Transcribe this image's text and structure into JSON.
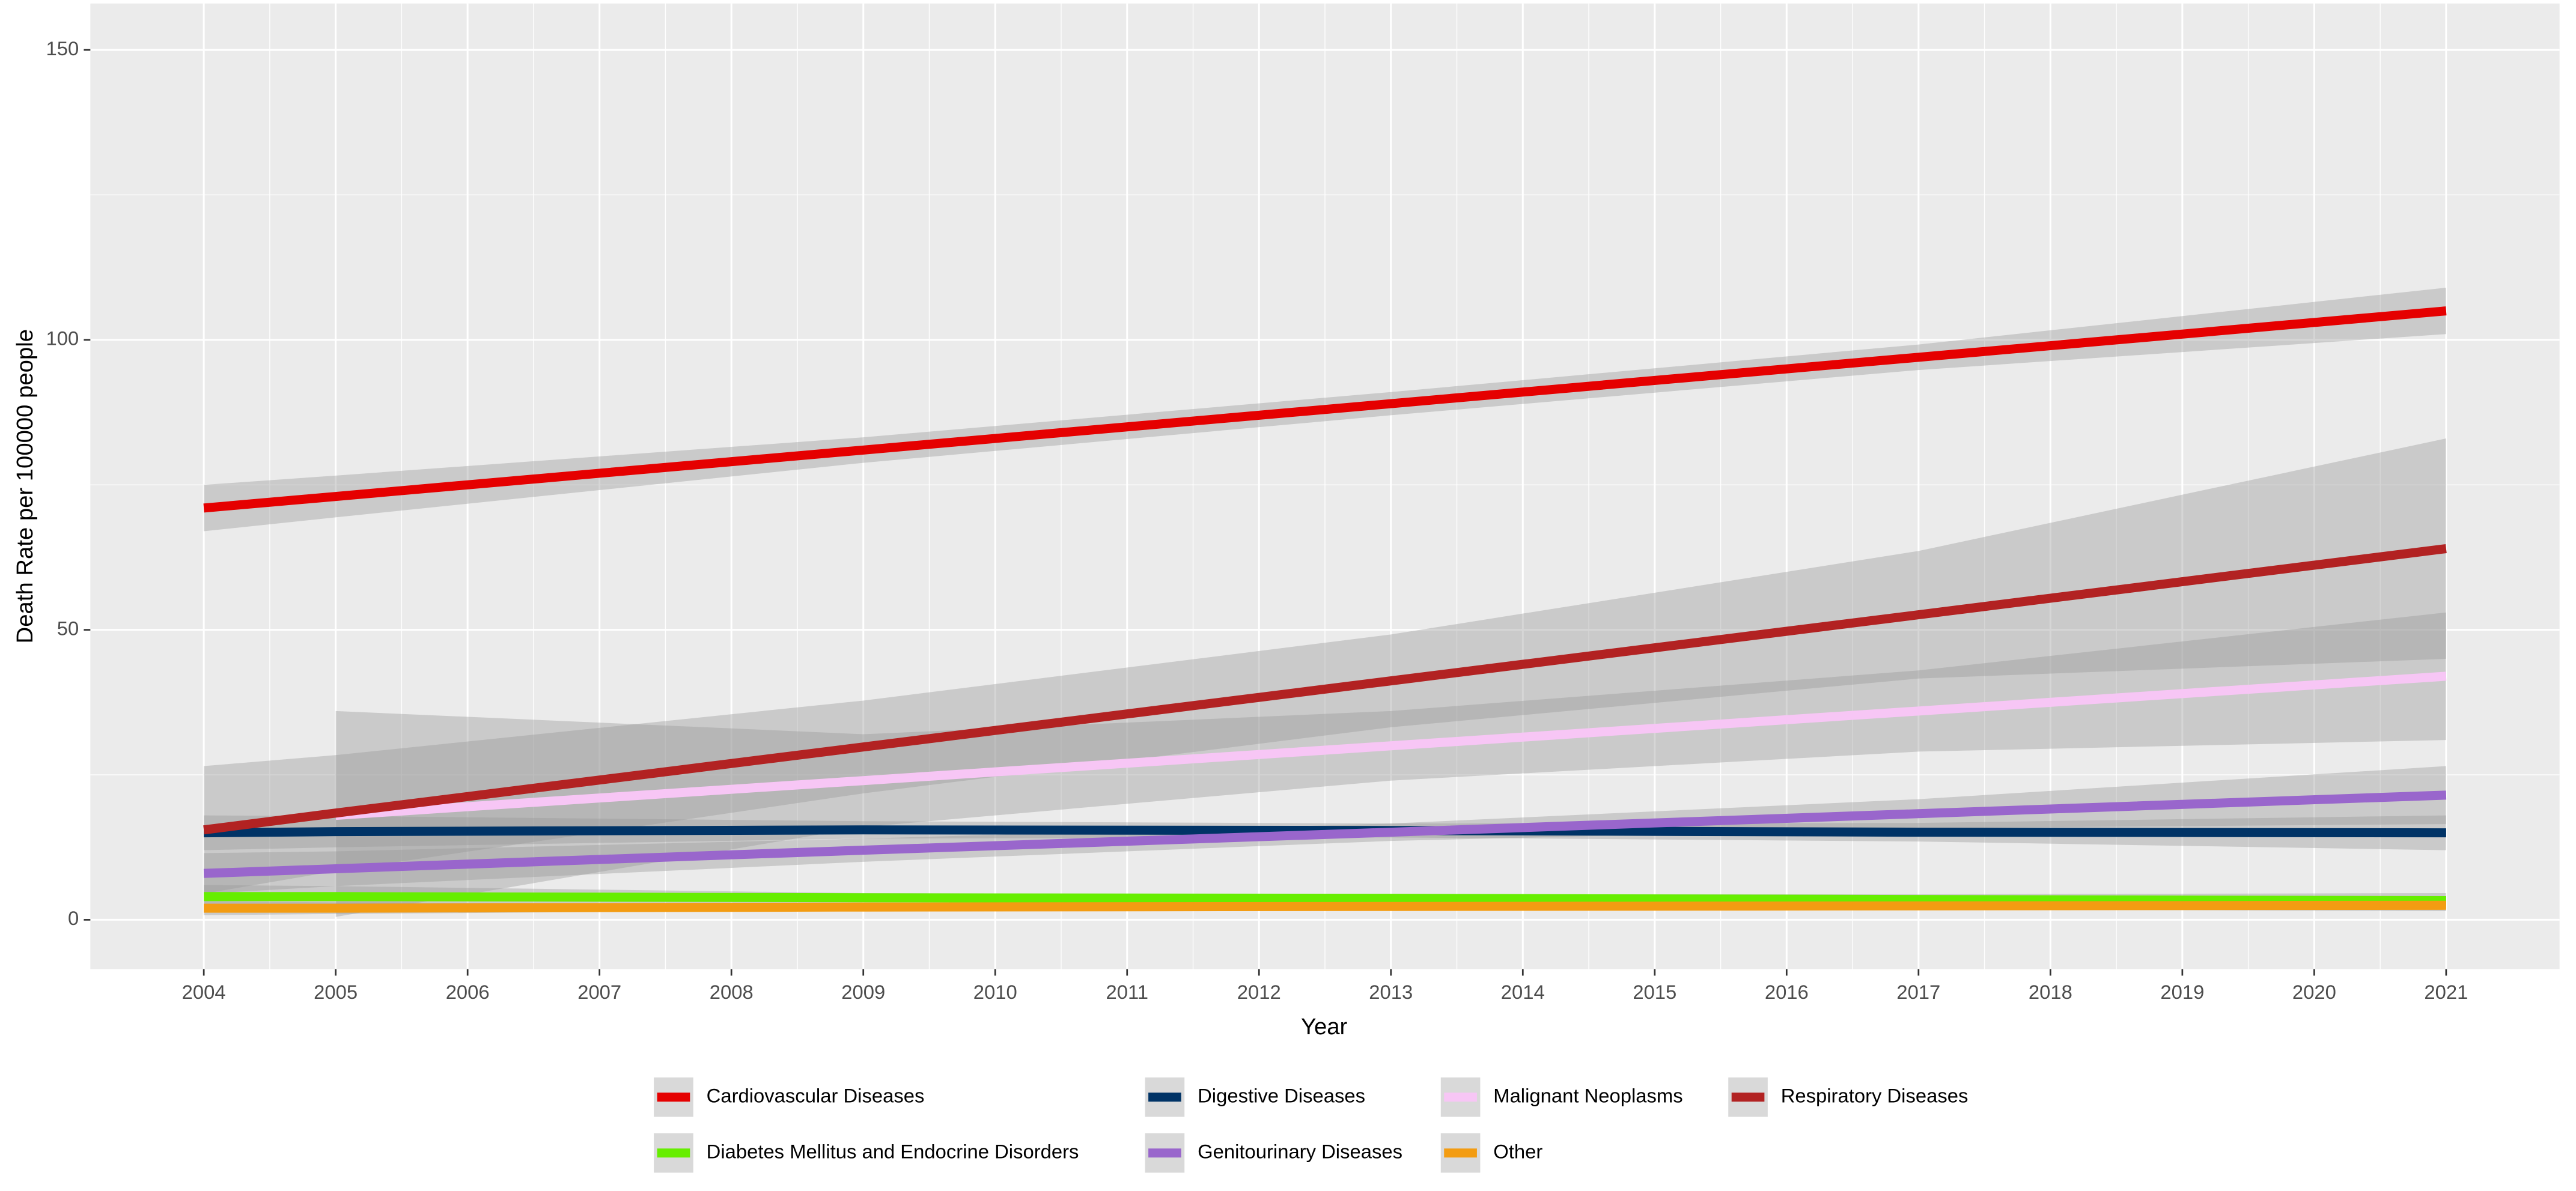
{
  "chart_data": {
    "type": "line",
    "xlabel": "Year",
    "ylabel": "Death Rate per 100000 people",
    "x": [
      2004,
      2005,
      2009,
      2013,
      2017,
      2021
    ],
    "xlim": [
      2003.14,
      2021.86
    ],
    "xticks": [
      2004,
      2005,
      2006,
      2007,
      2008,
      2009,
      2010,
      2011,
      2012,
      2013,
      2014,
      2015,
      2016,
      2017,
      2018,
      2019,
      2020,
      2021
    ],
    "ylim": [
      -8.5,
      158
    ],
    "yticks": [
      0,
      50,
      100,
      150
    ],
    "grid": true,
    "legend": "bottom",
    "band_color": "#999999",
    "series": [
      {
        "name": "Cardiovascular Diseases",
        "color": "#e50000",
        "values": [
          71,
          73,
          81,
          89,
          97,
          105
        ],
        "lower": [
          67,
          69.4,
          78.8,
          87,
          94.8,
          101
        ],
        "upper": [
          75,
          76.6,
          83.2,
          91,
          99.2,
          109
        ]
      },
      {
        "name": "Diabetes Mellitus and Endocrine Disorders",
        "color": "#66ee00",
        "values": [
          4,
          4,
          3.8,
          3.7,
          3.5,
          3.3
        ],
        "lower": [
          2,
          2.2,
          3,
          3,
          2.6,
          2
        ],
        "upper": [
          6,
          5.8,
          4.6,
          4.4,
          4.4,
          4.6
        ]
      },
      {
        "name": "Digestive Diseases",
        "color": "#003366",
        "values": [
          15,
          15.2,
          15.5,
          15.4,
          15.1,
          15
        ],
        "lower": [
          12,
          12.5,
          14,
          14.2,
          13.5,
          12
        ],
        "upper": [
          18,
          17.9,
          17,
          16.6,
          16.7,
          18
        ]
      },
      {
        "name": "Genitourinary Diseases",
        "color": "#9966cc",
        "values": [
          8,
          8.8,
          12,
          15.1,
          18.3,
          21.5
        ],
        "lower": [
          4.5,
          5.8,
          10,
          13.6,
          15.8,
          16.5
        ],
        "upper": [
          11.5,
          11.8,
          14,
          16.6,
          20.8,
          26.5
        ]
      },
      {
        "name": "Malignant Neoplasms",
        "color": "#f7c6f5",
        "values": [
          null,
          18,
          24,
          30,
          36,
          42
        ],
        "lower": [
          null,
          0.5,
          16,
          24,
          29,
          31
        ],
        "upper": [
          null,
          36,
          32,
          36,
          43,
          53
        ]
      },
      {
        "name": "Other",
        "color": "#f39c12",
        "values": [
          2,
          2,
          2.2,
          2.3,
          2.4,
          2.5
        ],
        "lower": [
          0.8,
          1,
          1.7,
          1.9,
          1.8,
          1.5
        ],
        "upper": [
          3.2,
          3,
          2.7,
          2.7,
          3,
          3.5
        ]
      },
      {
        "name": "Respiratory Diseases",
        "color": "#b22222",
        "values": [
          15.5,
          18.4,
          29.8,
          41.2,
          52.6,
          64
        ],
        "lower": [
          4.5,
          8.4,
          21.8,
          33.2,
          41.6,
          45
        ],
        "upper": [
          26.5,
          28.4,
          37.8,
          49.2,
          63.6,
          83
        ]
      }
    ]
  }
}
